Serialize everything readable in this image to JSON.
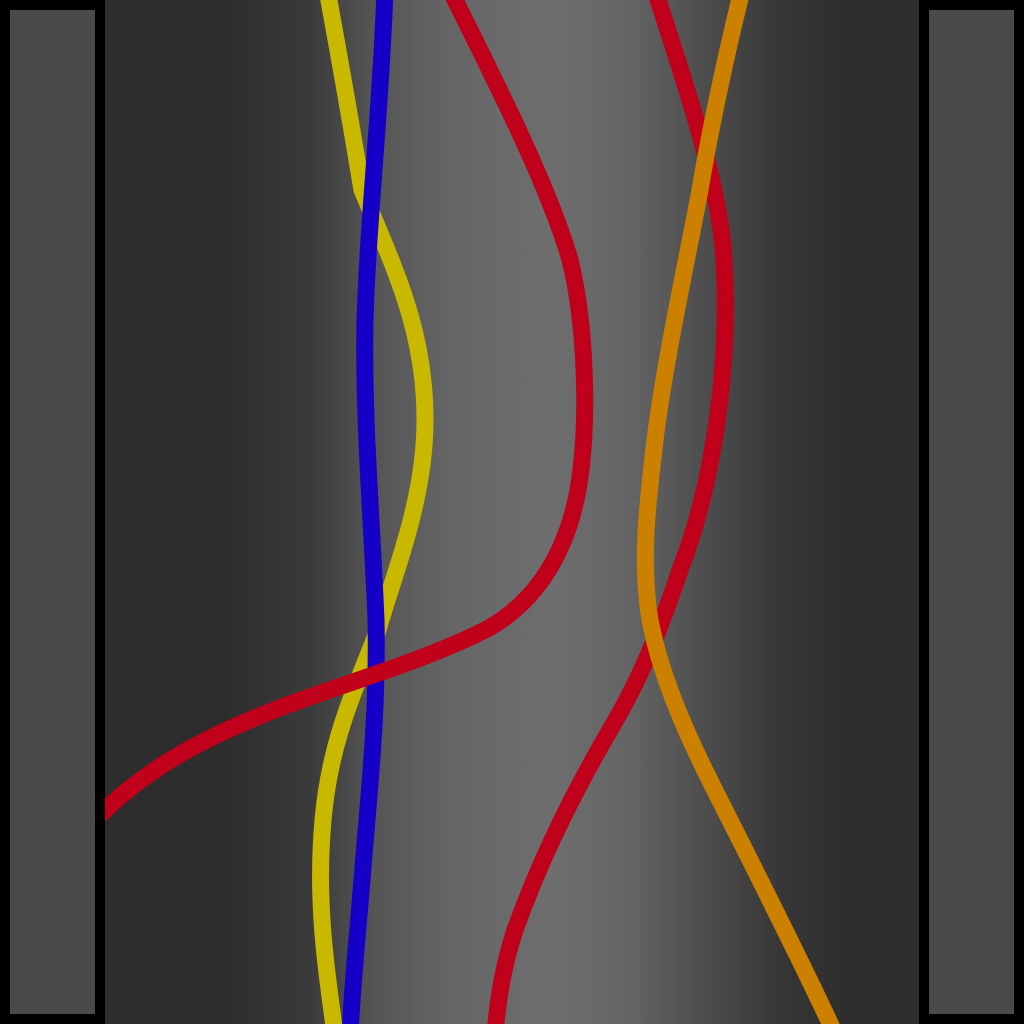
{
  "wires": [
    {
      "id": "yellow-wire",
      "color": "#c8b800"
    },
    {
      "id": "blue-wire",
      "color": "#1600c8"
    },
    {
      "id": "red-wire-curve",
      "color": "#c0001a"
    },
    {
      "id": "red-wire-right",
      "color": "#c0001a"
    },
    {
      "id": "orange-wire",
      "color": "#cc8000"
    }
  ],
  "colors": {
    "frame": "#000000",
    "side_panel": "#4a4a4a",
    "board_dark": "#2d2d2d",
    "board_light": "#6e6e6e"
  }
}
